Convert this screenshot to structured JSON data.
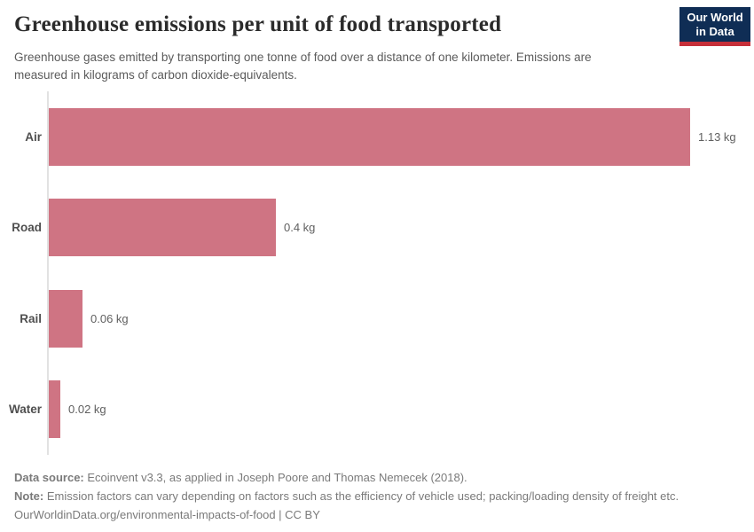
{
  "header": {
    "title": "Greenhouse emissions per unit of food transported",
    "subtitle": "Greenhouse gases emitted by transporting one tonne of food over a distance of one kilometer. Emissions are measured in kilograms of carbon dioxide-equivalents.",
    "logo": {
      "line1": "Our World",
      "line2": "in Data"
    }
  },
  "chart_data": {
    "type": "bar",
    "orientation": "horizontal",
    "title": "Greenhouse emissions per unit of food transported",
    "categories": [
      "Air",
      "Road",
      "Rail",
      "Water"
    ],
    "values": [
      1.13,
      0.4,
      0.06,
      0.02
    ],
    "value_labels": [
      "1.13 kg",
      "0.4 kg",
      "0.06 kg",
      "0.02 kg"
    ],
    "unit": "kg",
    "xlim": [
      0,
      1.13
    ],
    "grid": false,
    "legend": "none",
    "bar_color": "#cf7483"
  },
  "footer": {
    "data_source_label": "Data source:",
    "data_source_text": " Ecoinvent v3.3, as applied in Joseph Poore and Thomas Nemecek (2018).",
    "note_label": "Note:",
    "note_text": " Emission factors can vary depending on factors such as the efficiency of vehicle used; packing/loading density of freight etc.",
    "url_line": "OurWorldinData.org/environmental-impacts-of-food | CC BY"
  },
  "colors": {
    "bar": "#cf7483",
    "logo_blue": "#0f2d55",
    "logo_red": "#c62f39",
    "axis_line": "#e2e2e2",
    "title_text": "#2b2b2b",
    "subtitle_text": "#5b5b5b",
    "footer_text": "#7a7a7a"
  }
}
